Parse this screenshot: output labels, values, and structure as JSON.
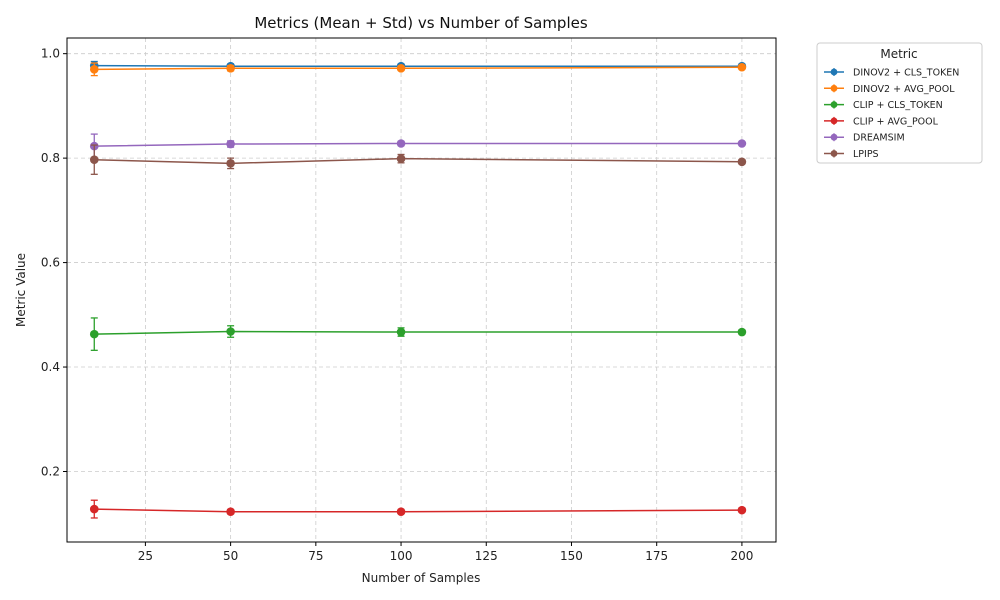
{
  "chart_data": {
    "type": "line",
    "title": "Metrics (Mean + Std) vs Number of Samples",
    "xlabel": "Number of Samples",
    "ylabel": "Metric Value",
    "xlim": [
      2,
      210
    ],
    "ylim": [
      0.065,
      1.03
    ],
    "xticks": [
      25,
      50,
      75,
      100,
      125,
      150,
      175,
      200
    ],
    "yticks": [
      0.2,
      0.4,
      0.6,
      0.8,
      1.0
    ],
    "xtick_labels": [
      "25",
      "50",
      "75",
      "100",
      "125",
      "150",
      "175",
      "200"
    ],
    "ytick_labels": [
      "0.2",
      "0.4",
      "0.6",
      "0.8",
      "1.0"
    ],
    "grid": true,
    "legend": {
      "title": "Metric",
      "placement": "outside-right"
    },
    "x": [
      10,
      50,
      100,
      200
    ],
    "series": [
      {
        "name": "DINOV2 + CLS_TOKEN",
        "color": "#1f77b4",
        "values": [
          0.977,
          0.976,
          0.976,
          0.976
        ],
        "std": [
          0.008,
          0.003,
          0.002,
          0.001
        ]
      },
      {
        "name": "DINOV2 + AVG_POOL",
        "color": "#ff7f0e",
        "values": [
          0.97,
          0.972,
          0.972,
          0.974
        ],
        "std": [
          0.012,
          0.005,
          0.004,
          0.002
        ]
      },
      {
        "name": "CLIP + CLS_TOKEN",
        "color": "#2ca02c",
        "values": [
          0.463,
          0.468,
          0.467,
          0.467
        ],
        "std": [
          0.031,
          0.011,
          0.008,
          0.004
        ]
      },
      {
        "name": "CLIP + AVG_POOL",
        "color": "#d62728",
        "values": [
          0.128,
          0.123,
          0.123,
          0.126
        ],
        "std": [
          0.017,
          0.004,
          0.003,
          0.002
        ]
      },
      {
        "name": "DREAMSIM",
        "color": "#9467bd",
        "values": [
          0.823,
          0.827,
          0.828,
          0.828
        ],
        "std": [
          0.023,
          0.006,
          0.004,
          0.002
        ]
      },
      {
        "name": "LPIPS",
        "color": "#8c564b",
        "values": [
          0.797,
          0.79,
          0.799,
          0.793
        ],
        "std": [
          0.028,
          0.01,
          0.008,
          0.004
        ]
      }
    ]
  }
}
